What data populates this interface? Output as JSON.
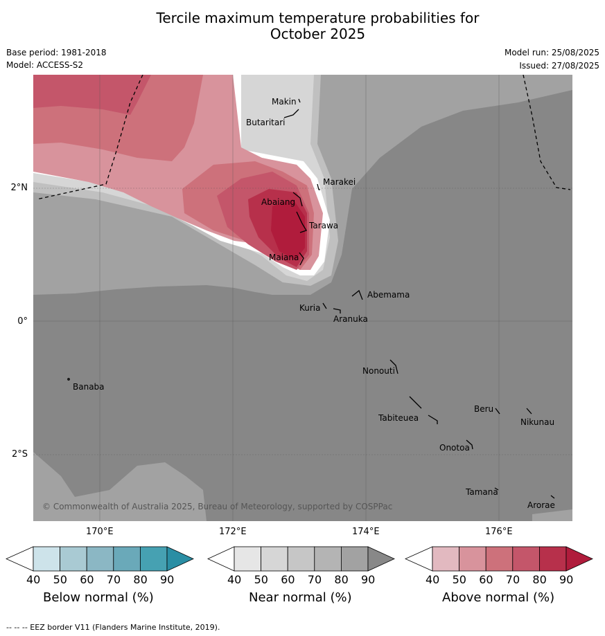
{
  "title_line1": "Tercile maximum temperature probabilities for",
  "title_line2": "October 2025",
  "base_period": "Base period: 1981-2018",
  "model": "Model: ACCESS-S2",
  "model_run": "Model run: 25/08/2025",
  "issued": "Issued: 27/08/2025",
  "lat_labels": [
    "2°N",
    "0°",
    "2°S"
  ],
  "lon_labels": [
    "170°E",
    "172°E",
    "174°E",
    "176°E"
  ],
  "places": [
    "Makin",
    "Butaritari",
    "Marakei",
    "Abaiang",
    "Tarawa",
    "Maiana",
    "Abemama",
    "Kuria",
    "Aranuka",
    "Banaba",
    "Nonouti",
    "Tabiteuea",
    "Beru",
    "Nikunau",
    "Onotoa",
    "Tamana",
    "Arorae"
  ],
  "copyright": "© Commonwealth of Australia 2025, Bureau of Meteorology, supported by COSPPac",
  "colorbars": [
    {
      "label": "Below normal (%)",
      "ticks": [
        "40",
        "50",
        "60",
        "70",
        "80",
        "90"
      ],
      "colors": [
        "#ffffff",
        "#cde3ea",
        "#a9cad3",
        "#8bb7c4",
        "#6aa9b9",
        "#46a1b2",
        "#2a8ea4"
      ]
    },
    {
      "label": "Near normal (%)",
      "ticks": [
        "40",
        "50",
        "60",
        "70",
        "80",
        "90"
      ],
      "colors": [
        "#ffffff",
        "#e6e6e6",
        "#d6d6d6",
        "#c6c6c6",
        "#b4b4b4",
        "#a2a2a2",
        "#888888"
      ]
    },
    {
      "label": "Above normal (%)",
      "ticks": [
        "40",
        "50",
        "60",
        "70",
        "80",
        "90"
      ],
      "colors": [
        "#ffffff",
        "#e2b9c0",
        "#d8939c",
        "#cd717b",
        "#c4566a",
        "#b7304b",
        "#b01c3c"
      ]
    }
  ],
  "footer": "--  --  -- EEZ border V11 (Flanders Marine Institute, 2019)."
}
